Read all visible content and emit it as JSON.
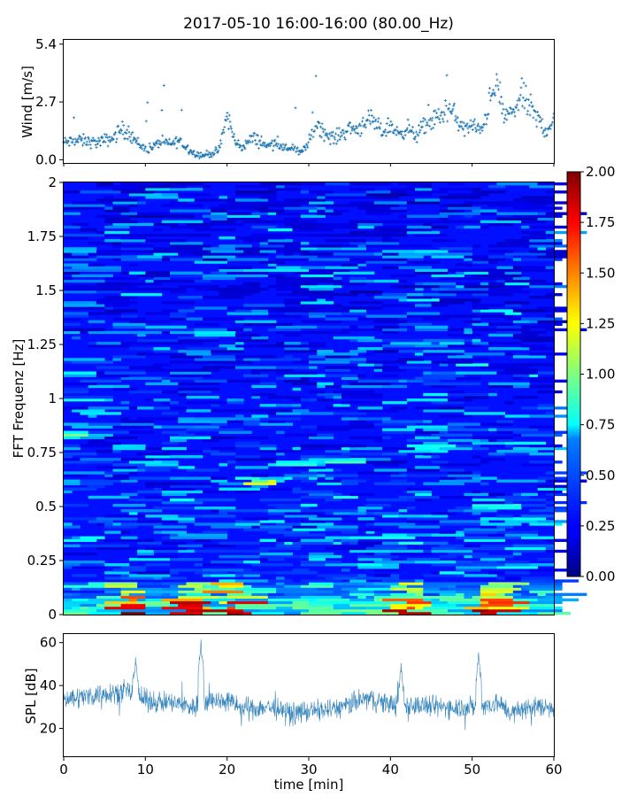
{
  "title": "2017-05-10 16:00-16:00 (80.00_Hz)",
  "chart_data": [
    {
      "type": "scatter",
      "name": "wind",
      "ylabel": "Wind [m/s]",
      "xlim": [
        0,
        60
      ],
      "ylim": [
        -0.15,
        5.6
      ],
      "yticks": [
        0.0,
        2.7,
        5.4
      ],
      "ytick_labels": [
        "0.0",
        "2.7",
        "5.4"
      ],
      "xticks": [
        0,
        10,
        20,
        30,
        40,
        50,
        60
      ],
      "color": "#1f77b4",
      "marker": "+",
      "trend": [
        [
          0,
          0.8
        ],
        [
          2,
          0.9
        ],
        [
          4,
          0.8
        ],
        [
          6,
          1.0
        ],
        [
          7,
          1.4
        ],
        [
          8,
          1.3
        ],
        [
          9,
          0.8
        ],
        [
          10,
          0.5
        ],
        [
          11,
          0.6
        ],
        [
          12,
          0.9
        ],
        [
          13,
          0.7
        ],
        [
          14,
          0.9
        ],
        [
          15,
          0.6
        ],
        [
          16,
          0.3
        ],
        [
          17,
          0.2
        ],
        [
          18,
          0.3
        ],
        [
          19,
          0.4
        ],
        [
          20,
          2.1
        ],
        [
          21,
          0.8
        ],
        [
          22,
          0.6
        ],
        [
          23,
          1.0
        ],
        [
          24,
          0.9
        ],
        [
          25,
          0.6
        ],
        [
          26,
          0.9
        ],
        [
          27,
          0.5
        ],
        [
          28,
          0.6
        ],
        [
          29,
          0.3
        ],
        [
          30,
          0.8
        ],
        [
          31,
          1.8
        ],
        [
          32,
          1.2
        ],
        [
          33,
          1.0
        ],
        [
          34,
          1.2
        ],
        [
          35,
          1.5
        ],
        [
          36,
          1.4
        ],
        [
          37,
          1.9
        ],
        [
          38,
          1.7
        ],
        [
          39,
          1.3
        ],
        [
          40,
          1.6
        ],
        [
          41,
          1.2
        ],
        [
          42,
          1.5
        ],
        [
          43,
          1.1
        ],
        [
          44,
          1.5
        ],
        [
          45,
          1.8
        ],
        [
          46,
          2.0
        ],
        [
          47,
          2.4
        ],
        [
          48,
          2.0
        ],
        [
          49,
          1.4
        ],
        [
          50,
          1.6
        ],
        [
          51,
          1.3
        ],
        [
          52,
          2.5
        ],
        [
          53,
          3.5
        ],
        [
          54,
          2.0
        ],
        [
          55,
          2.2
        ],
        [
          56,
          3.0
        ],
        [
          57,
          2.5
        ],
        [
          58,
          1.9
        ],
        [
          59,
          1.4
        ],
        [
          60,
          1.8
        ]
      ]
    },
    {
      "type": "heatmap",
      "name": "spectrogram",
      "ylabel": "FFT Frequenz [Hz]",
      "xlim": [
        0,
        60
      ],
      "ylim": [
        0,
        2
      ],
      "yticks": [
        0,
        0.25,
        0.5,
        0.75,
        1,
        1.25,
        1.5,
        1.75,
        2
      ],
      "ytick_labels": [
        "0",
        "0.25",
        "0.5",
        "0.75",
        "1",
        "1.25",
        "1.5",
        "1.75",
        "2"
      ],
      "colormap": "jet",
      "clim": [
        0.0,
        2.0
      ],
      "colorbar_ticks": [
        0.0,
        0.25,
        0.5,
        0.75,
        1.0,
        1.25,
        1.5,
        1.75,
        2.0
      ],
      "colorbar_tick_labels": [
        "0.00",
        "0.25",
        "0.50",
        "0.75",
        "1.00",
        "1.25",
        "1.50",
        "1.75",
        "2.00"
      ],
      "low_freq_peaks_min": [
        [
          6.5,
          8.5
        ],
        [
          14.5,
          17.5
        ],
        [
          19.5,
          22.5
        ],
        [
          40.5,
          43.5
        ],
        [
          50.5,
          54.5
        ]
      ],
      "feature_lines": [
        [
          0,
          0.83
        ],
        [
          25,
          0.62
        ],
        [
          28,
          0.7
        ],
        [
          33,
          0.71
        ],
        [
          53,
          0.5
        ],
        [
          44,
          0.77
        ]
      ]
    },
    {
      "type": "line",
      "name": "spl",
      "ylabel": "SPL [dB]",
      "xlabel": "time [min]",
      "xlim": [
        0,
        60
      ],
      "ylim": [
        7,
        64
      ],
      "yticks": [
        20,
        40,
        60
      ],
      "ytick_labels": [
        "20",
        "40",
        "60"
      ],
      "xticks": [
        0,
        10,
        20,
        30,
        40,
        50,
        60
      ],
      "xtick_labels": [
        "0",
        "10",
        "20",
        "30",
        "40",
        "50",
        "60"
      ],
      "color": "#1f77b4",
      "trend": [
        [
          0,
          34
        ],
        [
          3,
          35
        ],
        [
          6,
          37
        ],
        [
          8,
          37
        ],
        [
          10,
          33
        ],
        [
          13,
          32
        ],
        [
          16,
          30
        ],
        [
          18,
          33
        ],
        [
          20,
          33
        ],
        [
          22,
          29
        ],
        [
          25,
          30
        ],
        [
          28,
          27
        ],
        [
          30,
          28
        ],
        [
          33,
          29
        ],
        [
          35,
          31
        ],
        [
          37,
          34
        ],
        [
          39,
          32
        ],
        [
          41,
          31
        ],
        [
          43,
          31
        ],
        [
          45,
          30
        ],
        [
          47,
          30
        ],
        [
          49,
          30
        ],
        [
          51,
          30
        ],
        [
          53,
          32
        ],
        [
          55,
          27
        ],
        [
          57,
          30
        ],
        [
          60,
          30
        ]
      ],
      "spikes": [
        [
          8.8,
          53
        ],
        [
          16.8,
          60
        ],
        [
          41.3,
          49
        ],
        [
          50.8,
          55
        ]
      ]
    }
  ]
}
